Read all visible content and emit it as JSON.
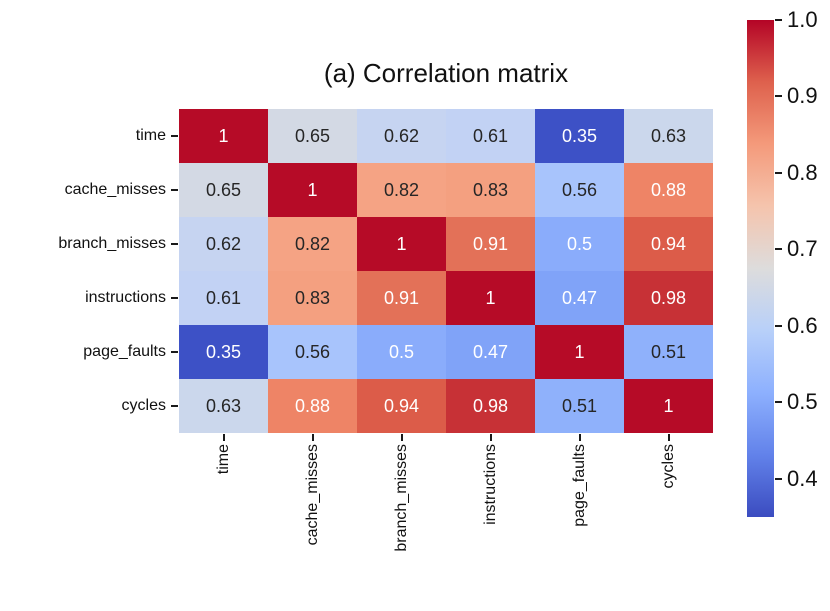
{
  "figure": {
    "background_color": "#ffffff"
  },
  "chart_data": {
    "type": "heatmap",
    "title": "(a) Correlation matrix",
    "categories": [
      "time",
      "cache_misses",
      "branch_misses",
      "instructions",
      "page_faults",
      "cycles"
    ],
    "matrix": [
      [
        1,
        0.65,
        0.62,
        0.61,
        0.35,
        0.63
      ],
      [
        0.65,
        1,
        0.82,
        0.83,
        0.56,
        0.88
      ],
      [
        0.62,
        0.82,
        1,
        0.91,
        0.5,
        0.94
      ],
      [
        0.61,
        0.83,
        0.91,
        1,
        0.47,
        0.98
      ],
      [
        0.35,
        0.56,
        0.5,
        0.47,
        1,
        0.51
      ],
      [
        0.63,
        0.88,
        0.94,
        0.98,
        0.51,
        1
      ]
    ],
    "colormap": "coolwarm",
    "vmin": 0.35,
    "vmax": 1.0,
    "grid_on": false,
    "colorbar": {
      "position": "right",
      "tick_labels": [
        "1.0",
        "0.9",
        "0.8",
        "0.7",
        "0.6",
        "0.5",
        "0.4"
      ],
      "gradient_stops": [
        "#b40426",
        "#de614d",
        "#f49a7b",
        "#f5c4ad",
        "#dddcdc",
        "#b8d0f9",
        "#8db0fe",
        "#6282ea",
        "#3b4cc0"
      ]
    },
    "value_styles": {
      "1": {
        "bg": "#b60b27",
        "fg": "#ffffff"
      },
      "0.98": {
        "bg": "#c73136",
        "fg": "#ffffff"
      },
      "0.94": {
        "bg": "#dc5c49",
        "fg": "#ffffff"
      },
      "0.91": {
        "bg": "#e37158",
        "fg": "#ffffff"
      },
      "0.88": {
        "bg": "#ee8466",
        "fg": "#ffffff"
      },
      "0.83": {
        "bg": "#f4a080",
        "fg": "#262626"
      },
      "0.82": {
        "bg": "#f5a384",
        "fg": "#262626"
      },
      "0.65": {
        "bg": "#d3d9e4",
        "fg": "#262626"
      },
      "0.63": {
        "bg": "#cbd7ec",
        "fg": "#262626"
      },
      "0.62": {
        "bg": "#c6d4f1",
        "fg": "#262626"
      },
      "0.61": {
        "bg": "#c2d2f4",
        "fg": "#262626"
      },
      "0.56": {
        "bg": "#a8c4fc",
        "fg": "#262626"
      },
      "0.51": {
        "bg": "#8fb1fb",
        "fg": "#262626"
      },
      "0.5": {
        "bg": "#8aacfb",
        "fg": "#ffffff"
      },
      "0.47": {
        "bg": "#80a3f8",
        "fg": "#ffffff"
      },
      "0.35": {
        "bg": "#3d51c6",
        "fg": "#ffffff"
      }
    }
  }
}
